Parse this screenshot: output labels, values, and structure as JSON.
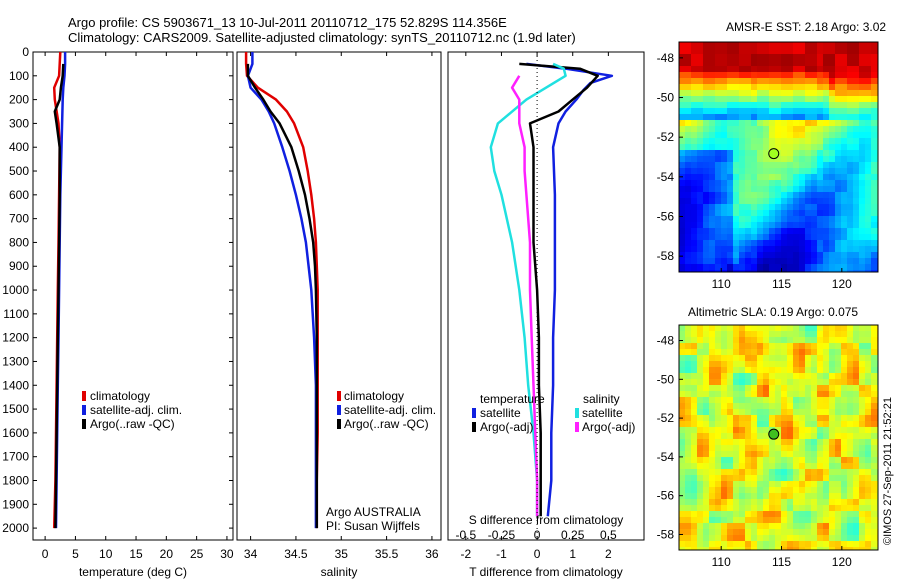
{
  "header": {
    "line1": "Argo profile: CS 5903671_13 10-Jul-2011 20110712_175 52.829S 114.356E",
    "line2": "Climatology: CARS2009. Satellite-adjusted climatology: synTS_20110712.nc (1.9d later)"
  },
  "colors": {
    "climatology": "#e00000",
    "satellite": "#1020e0",
    "argo": "#000000",
    "salinity_satellite": "#20e0e0",
    "salinity_argo": "#ff20ff"
  },
  "footer_credit": "©IMOS 27-Sep-2011 21:52:21",
  "chart_data": [
    {
      "type": "line",
      "id": "temperature",
      "xlabel": "temperature (deg C)",
      "ylabel": "",
      "xlim": [
        -2,
        31
      ],
      "ylim": [
        2050,
        0
      ],
      "xticks": [
        0,
        5,
        10,
        15,
        20,
        25,
        30
      ],
      "yticks": [
        0,
        100,
        200,
        300,
        400,
        500,
        600,
        700,
        800,
        900,
        1000,
        1100,
        1200,
        1300,
        1400,
        1500,
        1600,
        1700,
        1800,
        1900,
        2000
      ],
      "legend": [
        "climatology",
        "satellite-adj. clim.",
        "Argo(..raw -QC)"
      ],
      "series": [
        {
          "name": "climatology",
          "color": "#e00000",
          "depth": [
            0,
            50,
            100,
            150,
            200,
            300,
            400,
            600,
            800,
            1000,
            1200,
            1400,
            1600,
            1800,
            2000
          ],
          "values": [
            2.5,
            2.4,
            2.3,
            1.5,
            1.6,
            2.2,
            2.4,
            2.3,
            2.2,
            2.1,
            2.0,
            1.9,
            1.8,
            1.7,
            1.5
          ]
        },
        {
          "name": "satellite-adj. clim.",
          "color": "#1020e0",
          "depth": [
            0,
            50,
            100,
            150,
            200,
            300,
            400,
            600,
            800,
            1000,
            1200,
            1400,
            1600,
            1800,
            2000
          ],
          "values": [
            3.3,
            3.3,
            3.2,
            3.0,
            2.9,
            2.8,
            2.7,
            2.5,
            2.4,
            2.3,
            2.2,
            2.1,
            2.0,
            1.9,
            1.8
          ]
        },
        {
          "name": "Argo(..raw -QC)",
          "color": "#000000",
          "depth": [
            50,
            100,
            150,
            200,
            250,
            300,
            400,
            600,
            800,
            1000,
            1200,
            1400,
            1600,
            1800,
            2000
          ],
          "values": [
            3.0,
            2.9,
            2.6,
            2.4,
            1.6,
            1.9,
            2.4,
            2.4,
            2.3,
            2.2,
            2.1,
            2.0,
            1.9,
            1.8,
            1.7
          ]
        }
      ]
    },
    {
      "type": "line",
      "id": "salinity",
      "xlabel": "salinity",
      "xlim": [
        33.85,
        36.1
      ],
      "ylim": [
        2050,
        0
      ],
      "xticks": [
        34,
        34.5,
        35,
        35.5,
        36
      ],
      "legend": [
        "climatology",
        "satellite-adj. clim.",
        "Argo(..raw -QC)"
      ],
      "annotation": [
        "Argo AUSTRALIA",
        "PI: Susan Wijffels"
      ],
      "series": [
        {
          "name": "climatology",
          "color": "#e00000",
          "depth": [
            0,
            50,
            100,
            150,
            200,
            250,
            300,
            400,
            500,
            600,
            700,
            800,
            900,
            1000,
            1200,
            1400,
            1600,
            1800,
            2000
          ],
          "values": [
            33.95,
            33.95,
            33.96,
            34.08,
            34.28,
            34.4,
            34.48,
            34.58,
            34.63,
            34.67,
            34.7,
            34.72,
            34.73,
            34.74,
            34.74,
            34.74,
            34.74,
            34.73,
            34.73
          ]
        },
        {
          "name": "satellite-adj. clim.",
          "color": "#1020e0",
          "depth": [
            0,
            50,
            100,
            150,
            200,
            250,
            300,
            400,
            500,
            600,
            700,
            800,
            900,
            1000,
            1200,
            1400,
            1600,
            1800,
            2000
          ],
          "values": [
            34.02,
            34.02,
            33.97,
            34.0,
            34.12,
            34.2,
            34.26,
            34.35,
            34.43,
            34.5,
            34.56,
            34.61,
            34.64,
            34.67,
            34.7,
            34.72,
            34.72,
            34.72,
            34.72
          ]
        },
        {
          "name": "Argo(..raw -QC)",
          "color": "#000000",
          "depth": [
            50,
            100,
            150,
            200,
            250,
            300,
            400,
            500,
            600,
            700,
            800,
            900,
            1000,
            1200,
            1400,
            1600,
            1800,
            2000
          ],
          "values": [
            33.97,
            33.97,
            34.05,
            34.14,
            34.22,
            34.32,
            34.45,
            34.53,
            34.6,
            34.65,
            34.69,
            34.71,
            34.72,
            34.73,
            34.73,
            34.73,
            34.73,
            34.73
          ]
        }
      ]
    },
    {
      "type": "line",
      "id": "difference",
      "xlabel": "T difference from climatology",
      "xlabel_top": "S difference from climatology",
      "xlim": [
        -2.5,
        3.0
      ],
      "ylim": [
        2050,
        0
      ],
      "xticks": [
        -2,
        -1,
        0,
        1,
        2
      ],
      "xticks_s": [
        -0.5,
        -0.25,
        0,
        0.25,
        0.5
      ],
      "legend_groups": [
        {
          "title": "temperature",
          "entries": [
            "satellite",
            "Argo(-adj)"
          ]
        },
        {
          "title": "salinity",
          "entries": [
            "satellite",
            "Argo(-adj)"
          ]
        }
      ],
      "series": [
        {
          "name": "satellite",
          "group": "temperature",
          "color": "#1020e0",
          "depth": [
            50,
            70,
            100,
            130,
            160,
            200,
            250,
            300,
            400,
            600,
            800,
            1000,
            1200,
            1400,
            1600,
            1800,
            1950
          ],
          "values": [
            -0.3,
            0.8,
            2.1,
            1.5,
            1.3,
            1.1,
            0.8,
            0.6,
            0.45,
            0.5,
            0.5,
            0.5,
            0.45,
            0.45,
            0.4,
            0.4,
            0.3
          ]
        },
        {
          "name": "Argo(-adj)",
          "group": "temperature",
          "color": "#000000",
          "depth": [
            50,
            70,
            100,
            150,
            200,
            250,
            300,
            400,
            600,
            800,
            1000,
            1200,
            1400,
            1600,
            1800,
            1950
          ],
          "values": [
            -0.5,
            1.2,
            1.7,
            1.4,
            1.0,
            0.6,
            -0.2,
            -0.1,
            -0.1,
            -0.1,
            0.0,
            0.05,
            0.05,
            0.1,
            0.1,
            0.1
          ]
        },
        {
          "name": "satellite",
          "group": "salinity",
          "color": "#20e0e0",
          "depth": [
            50,
            70,
            100,
            150,
            200,
            300,
            400,
            500,
            600,
            800,
            1000,
            1200,
            1400,
            1600,
            1800,
            1950
          ],
          "values": [
            0.45,
            0.75,
            0.8,
            0.25,
            -0.3,
            -1.1,
            -1.3,
            -1.2,
            -1.0,
            -0.7,
            -0.5,
            -0.35,
            -0.25,
            -0.1,
            0.0,
            0.0
          ]
        },
        {
          "name": "Argo(-adj)",
          "group": "salinity",
          "color": "#ff20ff",
          "depth": [
            100,
            150,
            200,
            300,
            400,
            500,
            600,
            800,
            1000,
            1200,
            1400,
            1600,
            1800,
            1950
          ],
          "values": [
            -0.5,
            -0.7,
            -0.5,
            -0.5,
            -0.35,
            -0.35,
            -0.3,
            -0.2,
            -0.2,
            -0.15,
            -0.1,
            -0.05,
            0.0,
            0.0
          ]
        }
      ]
    },
    {
      "type": "heatmap",
      "id": "sst_map",
      "title": "AMSR-E SST: 2.18 Argo: 3.02",
      "xticks": [
        110,
        115,
        120
      ],
      "yticks": [
        -48,
        -50,
        -52,
        -54,
        -56,
        -58
      ],
      "xlim": [
        106.5,
        123
      ],
      "ylim": [
        -58.8,
        -47.2
      ],
      "marker": {
        "lon": 114.356,
        "lat": -52.829
      }
    },
    {
      "type": "heatmap",
      "id": "sla_map",
      "title": "Altimetric SLA: 0.19 Argo: 0.075",
      "xticks": [
        110,
        115,
        120
      ],
      "yticks": [
        -48,
        -50,
        -52,
        -54,
        -56,
        -58
      ],
      "xlim": [
        106.5,
        123
      ],
      "ylim": [
        -58.8,
        -47.2
      ],
      "marker": {
        "lon": 114.356,
        "lat": -52.829
      }
    }
  ]
}
